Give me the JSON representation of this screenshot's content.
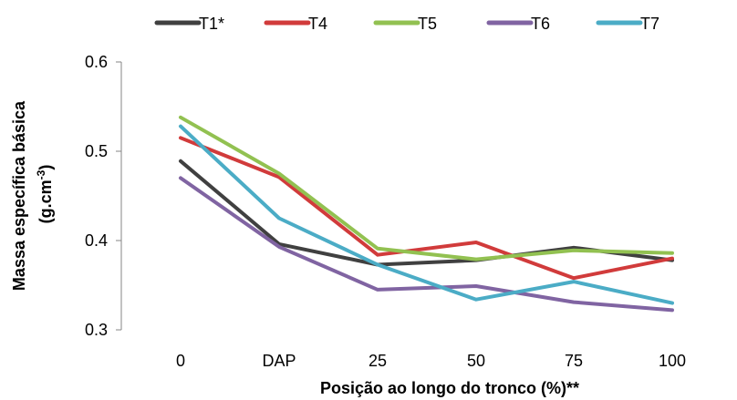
{
  "chart_data": {
    "type": "line",
    "categories": [
      "0",
      "DAP",
      "25",
      "50",
      "75",
      "100"
    ],
    "series": [
      {
        "name": "T1*",
        "color": "#404040",
        "values": [
          0.489,
          0.396,
          0.373,
          0.378,
          0.392,
          0.378
        ]
      },
      {
        "name": "T4",
        "color": "#d13b3b",
        "values": [
          0.515,
          0.471,
          0.384,
          0.398,
          0.358,
          0.38
        ]
      },
      {
        "name": "T5",
        "color": "#92c151",
        "values": [
          0.538,
          0.475,
          0.391,
          0.379,
          0.389,
          0.386
        ]
      },
      {
        "name": "T6",
        "color": "#8064a2",
        "values": [
          0.47,
          0.393,
          0.345,
          0.349,
          0.331,
          0.322
        ]
      },
      {
        "name": "T7",
        "color": "#4bacc6",
        "values": [
          0.528,
          0.425,
          0.373,
          0.334,
          0.354,
          0.33
        ]
      }
    ],
    "ylim": [
      0.3,
      0.6
    ],
    "yticks": [
      "0.6",
      "0.5",
      "0.4",
      "0.3"
    ],
    "ytick_values": [
      0.6,
      0.5,
      0.4,
      0.3
    ],
    "xlabel": "Posição ao longo do tronco (%)**",
    "ylabel_main": "Massa específica básica",
    "ylabel_unit_base": "(g.cm",
    "ylabel_unit_sup": "-3",
    "ylabel_unit_end": ")",
    "grid": false,
    "legend": "top"
  }
}
